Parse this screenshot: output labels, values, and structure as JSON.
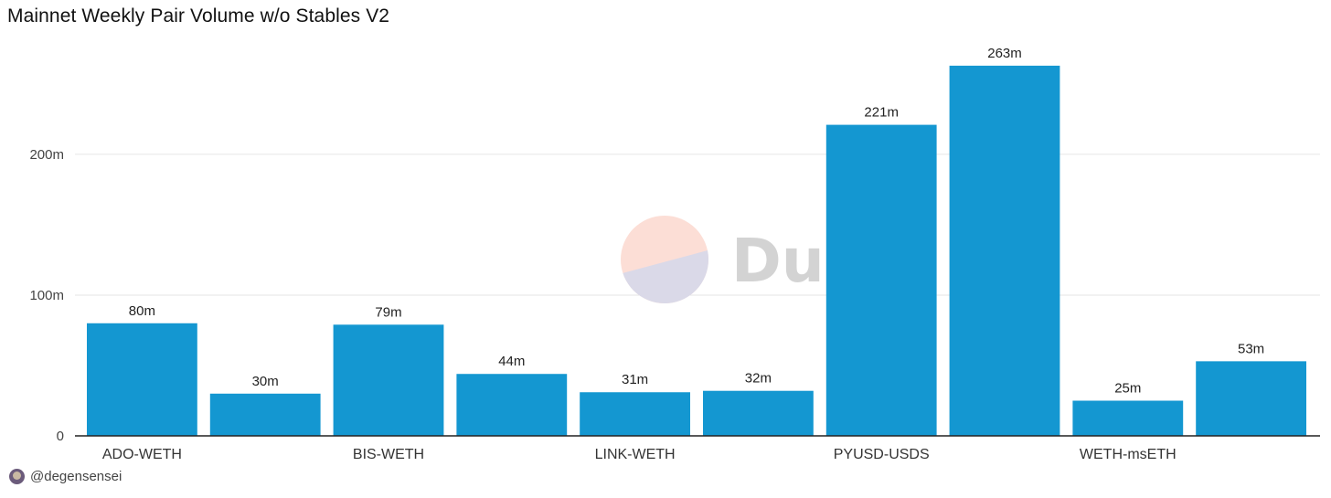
{
  "title": "Mainnet Weekly Pair Volume w/o Stables V2",
  "author": "@degensensei",
  "watermark": "Dune",
  "icons": {
    "avatar": "user-avatar-icon",
    "watermark": "dune-logo-icon"
  },
  "colors": {
    "bar": "#1497d1",
    "grid": "#e6e6e6",
    "axis": "#222222",
    "watermark_top": "#fcded6",
    "watermark_bottom": "#dad9e8"
  },
  "chart_data": {
    "type": "bar",
    "categories": [
      "ADO-WETH",
      "",
      "BIS-WETH",
      "",
      "LINK-WETH",
      "",
      "PYUSD-USDS",
      "",
      "WETH-msETH",
      ""
    ],
    "values": [
      80,
      30,
      79,
      44,
      31,
      32,
      221,
      263,
      25,
      53
    ],
    "data_labels": [
      "80m",
      "30m",
      "79m",
      "44m",
      "31m",
      "32m",
      "221m",
      "263m",
      "25m",
      "53m"
    ],
    "y_ticks": [
      0,
      100,
      200
    ],
    "y_tick_labels": [
      "0",
      "100m",
      "200m"
    ],
    "ylim": [
      0,
      285
    ],
    "grid": true,
    "legend": "none"
  }
}
